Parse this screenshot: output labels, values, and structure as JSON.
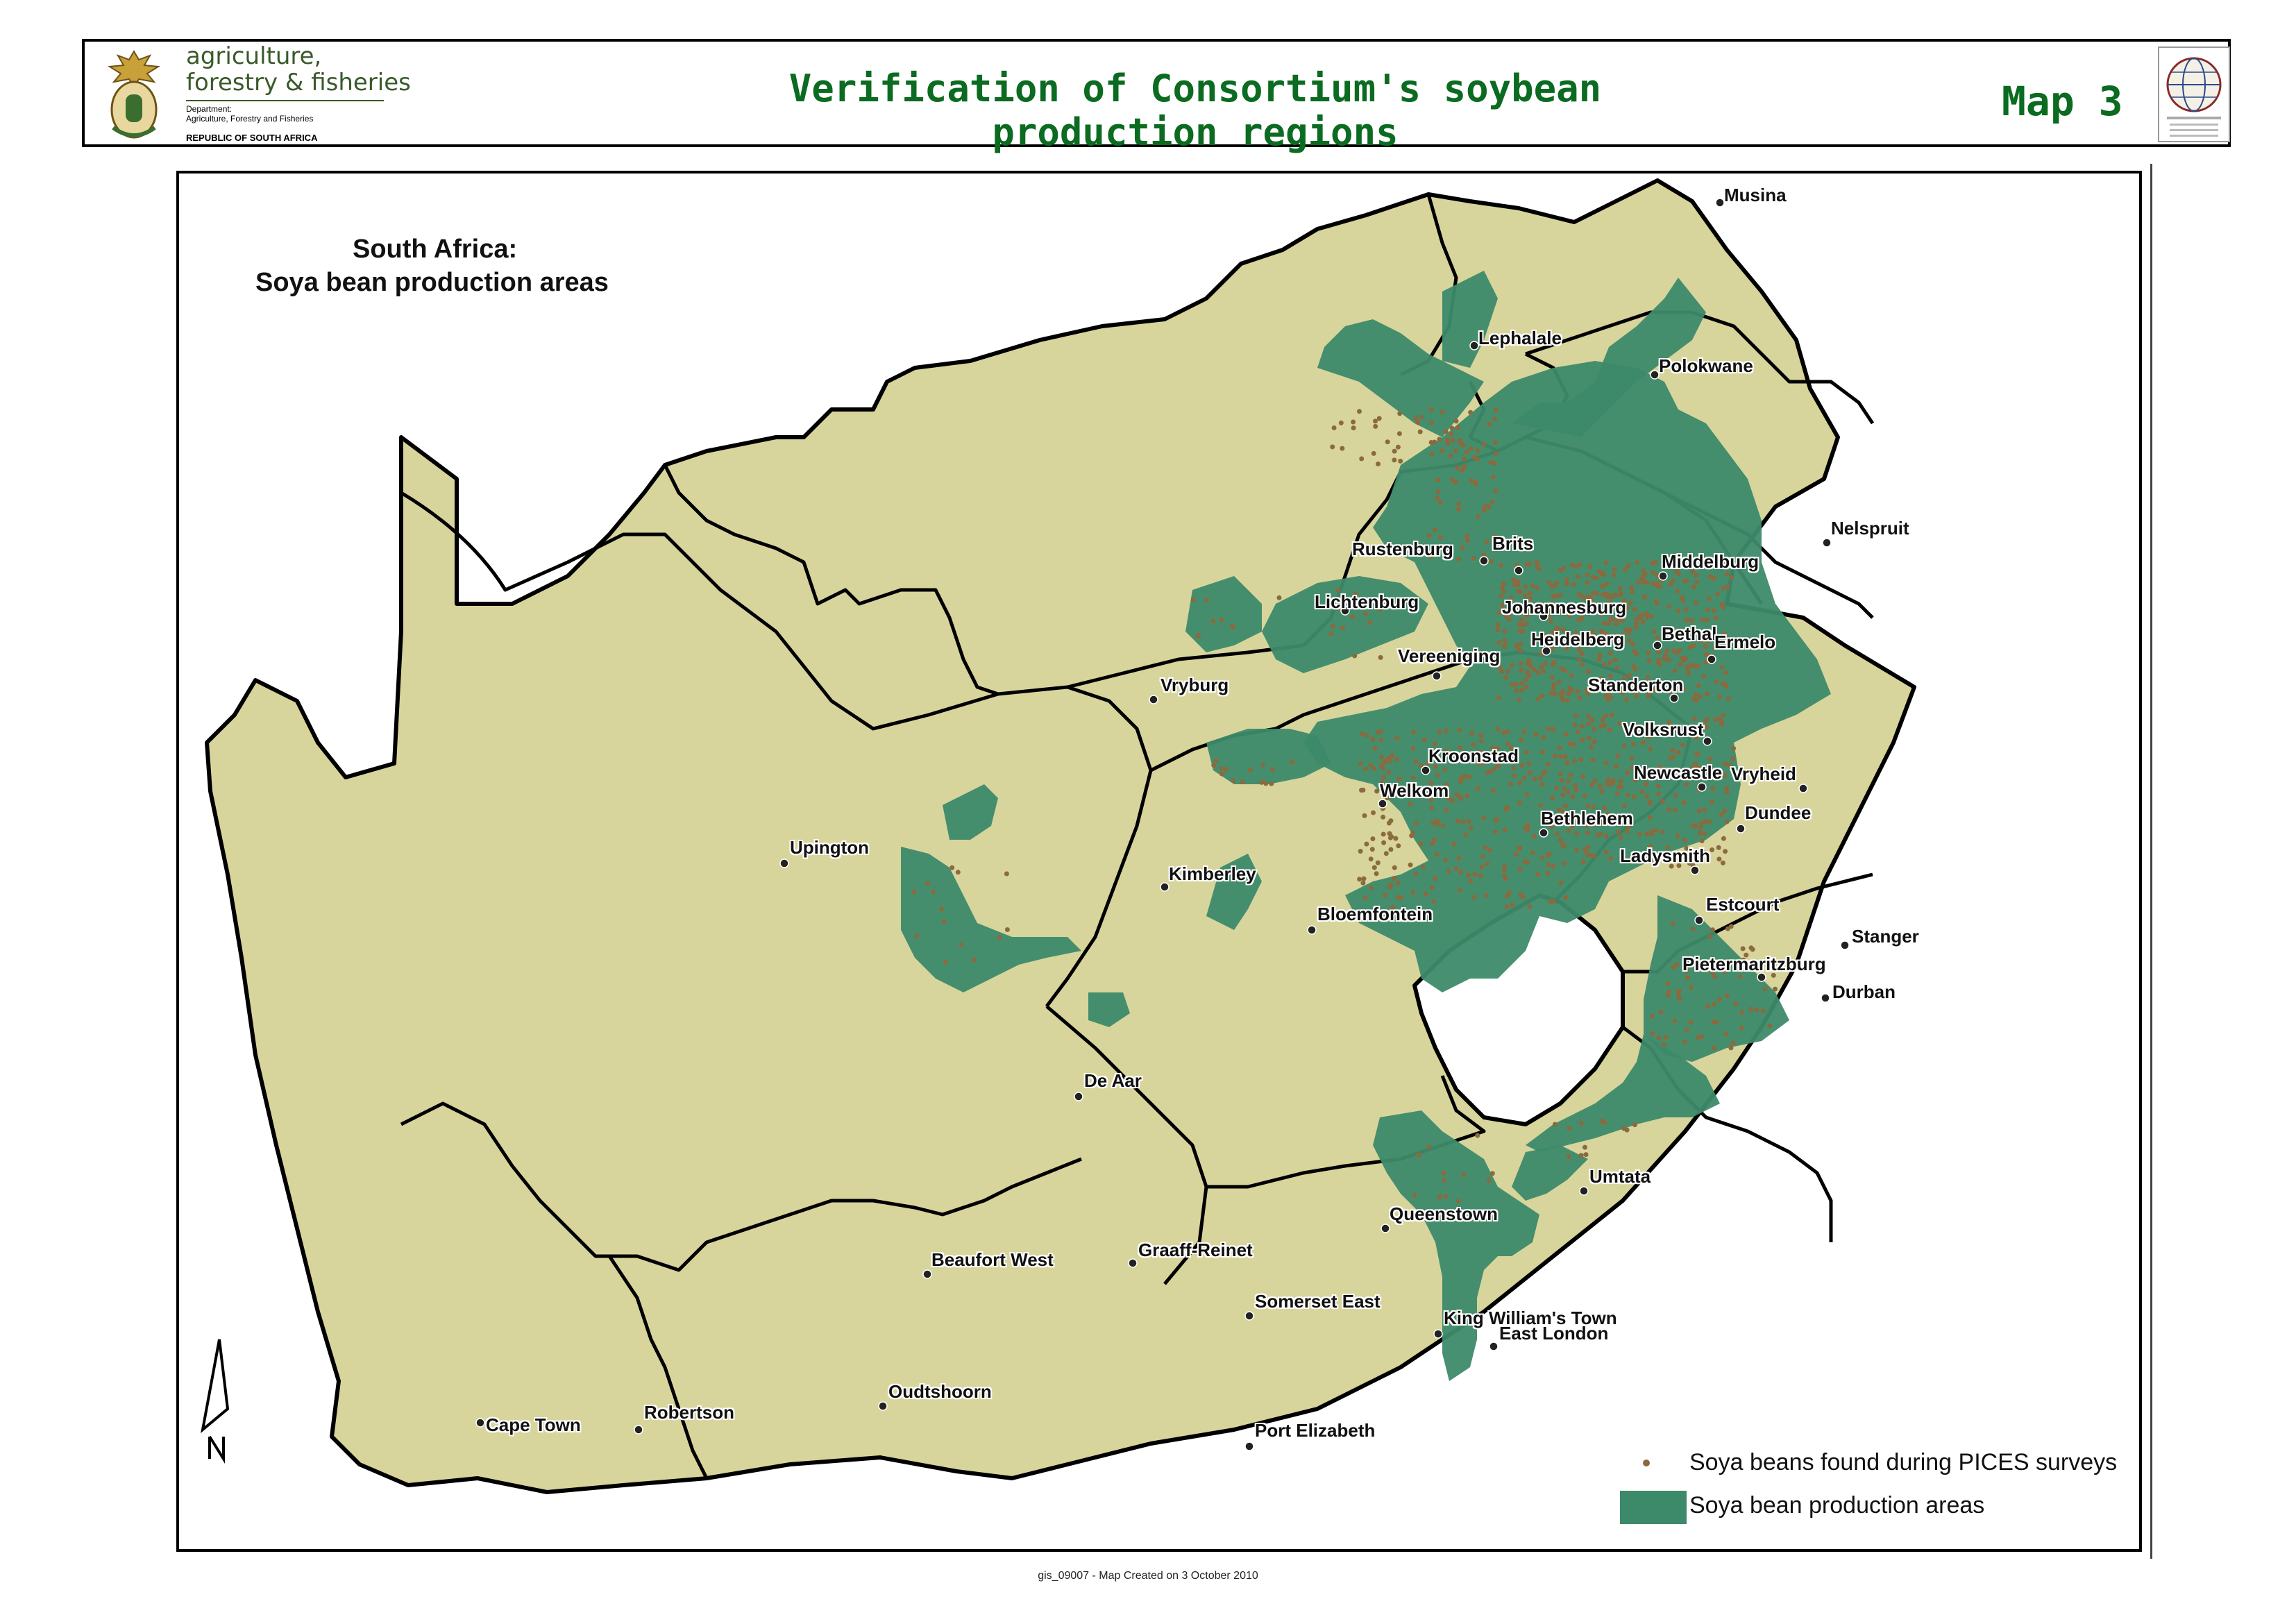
{
  "header": {
    "dept_line1": "agriculture,",
    "dept_line2": "forestry & fisheries",
    "dept_small1": "Department:",
    "dept_small2": "Agriculture, Forestry and Fisheries",
    "dept_small3": "REPUBLIC OF SOUTH AFRICA",
    "title": "Verification of Consortium's soybean production regions",
    "map_number": "Map 3"
  },
  "map": {
    "title_line1": "South Africa:",
    "title_line2": "Soya bean production areas",
    "colors": {
      "land": "#d8d59c",
      "production_area": "#3d8a6a",
      "survey_point": "#8a6a3e",
      "border": "#000000"
    },
    "towns": [
      {
        "name": "Musina"
      },
      {
        "name": "Lephalale"
      },
      {
        "name": "Polokwane"
      },
      {
        "name": "Nelspruit"
      },
      {
        "name": "Rustenburg"
      },
      {
        "name": "Brits"
      },
      {
        "name": "Middelburg"
      },
      {
        "name": "Lichtenburg"
      },
      {
        "name": "Johannesburg"
      },
      {
        "name": "Heidelberg"
      },
      {
        "name": "Bethal"
      },
      {
        "name": "Ermelo"
      },
      {
        "name": "Vereeniging"
      },
      {
        "name": "Vryburg"
      },
      {
        "name": "Standerton"
      },
      {
        "name": "Volksrust"
      },
      {
        "name": "Kroonstad"
      },
      {
        "name": "Newcastle"
      },
      {
        "name": "Vryheid"
      },
      {
        "name": "Welkom"
      },
      {
        "name": "Dundee"
      },
      {
        "name": "Bethlehem"
      },
      {
        "name": "Ladysmith"
      },
      {
        "name": "Upington"
      },
      {
        "name": "Kimberley"
      },
      {
        "name": "Estcourt"
      },
      {
        "name": "Bloemfontein"
      },
      {
        "name": "Stanger"
      },
      {
        "name": "Pietermaritzburg"
      },
      {
        "name": "Durban"
      },
      {
        "name": "De Aar"
      },
      {
        "name": "Umtata"
      },
      {
        "name": "Queenstown"
      },
      {
        "name": "Graaff-Reinet"
      },
      {
        "name": "Beaufort West"
      },
      {
        "name": "Somerset East"
      },
      {
        "name": "King William's Town"
      },
      {
        "name": "East London"
      },
      {
        "name": "Oudtshoorn"
      },
      {
        "name": "Robertson"
      },
      {
        "name": "Cape Town"
      },
      {
        "name": "Port Elizabeth"
      }
    ],
    "legend": [
      {
        "label": "Soya beans found during PICES surveys",
        "symbol": "dot"
      },
      {
        "label": "Soya bean production areas",
        "symbol": "area"
      }
    ],
    "north_arrow_label": "N"
  },
  "footer": "gis_09007 - Map Created on 3 October 2010"
}
